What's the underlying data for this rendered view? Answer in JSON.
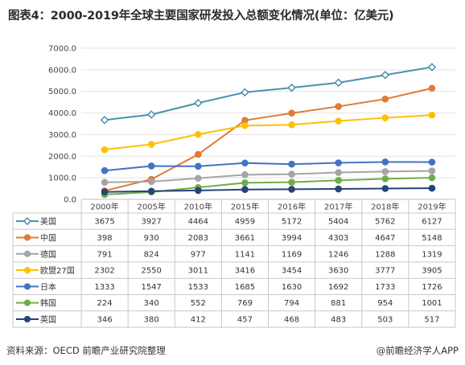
{
  "title": "图表4：2000-2019年全球主要国家研发投入总额变化情况(单位：亿美元)",
  "footer": {
    "source": "资料来源：OECD 前瞻产业研究院整理",
    "brand": "前瞻经济学人APP",
    "brand_icon": "at-icon"
  },
  "chart_data": {
    "type": "line",
    "x": [
      "2000年",
      "2005年",
      "2010年",
      "2015年",
      "2016年",
      "2017年",
      "2018年",
      "2019年"
    ],
    "y_ticks": [
      "0.0",
      "1000.0",
      "2000.0",
      "3000.0",
      "4000.0",
      "5000.0",
      "6000.0",
      "7000.0"
    ],
    "ylim": [
      0,
      7000
    ],
    "grid": true,
    "legend_placement": "data-table-left",
    "series": [
      {
        "name": "美国",
        "color": "#4a90ad",
        "marker": "diamond",
        "values": [
          3675,
          3927,
          4464,
          4959,
          5172,
          5404,
          5762,
          6127
        ]
      },
      {
        "name": "中国",
        "color": "#e07b39",
        "marker": "circle",
        "values": [
          398,
          930,
          2083,
          3661,
          3994,
          4303,
          4647,
          5148
        ]
      },
      {
        "name": "德国",
        "color": "#a5a5a5",
        "marker": "circle",
        "values": [
          791,
          824,
          977,
          1141,
          1169,
          1246,
          1288,
          1319
        ]
      },
      {
        "name": "欧盟27国",
        "color": "#ffc000",
        "marker": "circle",
        "values": [
          2302,
          2550,
          3011,
          3416,
          3454,
          3630,
          3777,
          3905
        ]
      },
      {
        "name": "日本",
        "color": "#4472c4",
        "marker": "circle",
        "values": [
          1333,
          1547,
          1533,
          1685,
          1630,
          1692,
          1733,
          1726
        ]
      },
      {
        "name": "韩国",
        "color": "#70ad47",
        "marker": "circle",
        "values": [
          224,
          340,
          552,
          769,
          794,
          881,
          954,
          1001
        ]
      },
      {
        "name": "英国",
        "color": "#264478",
        "marker": "circle",
        "values": [
          346,
          380,
          412,
          457,
          468,
          483,
          503,
          517
        ]
      }
    ]
  }
}
